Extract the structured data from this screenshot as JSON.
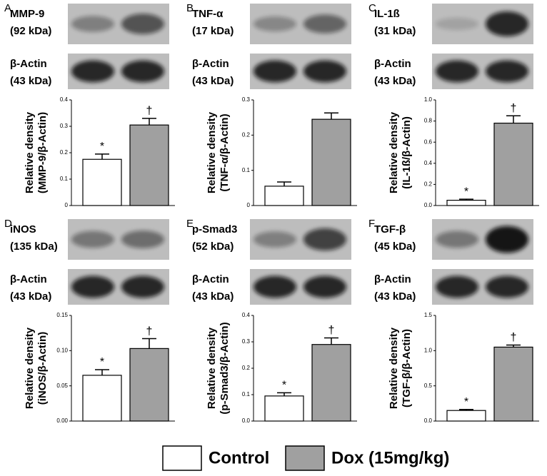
{
  "chart_data": [
    {
      "type": "bar",
      "panel": "A",
      "blot_label": "MMP-9",
      "blot_kda": "(92 kDa)",
      "actin_label": "β-Actin",
      "actin_kda": "(43 kDa)",
      "ylabel": [
        "Relative density",
        "(MMP-9/β-Actin)"
      ],
      "values": [
        0.175,
        0.305
      ],
      "errors": [
        0.02,
        0.025
      ],
      "annotations": [
        "*",
        "†"
      ],
      "ylim": [
        0,
        0.4
      ],
      "yticks": [
        0,
        0.1,
        0.2,
        0.3,
        0.4
      ]
    },
    {
      "type": "bar",
      "panel": "B",
      "blot_label": "TNF-α",
      "blot_kda": "(17 kDa)",
      "actin_label": "β-Actin",
      "actin_kda": "(43 kDa)",
      "ylabel": [
        "Relative density",
        "(TNF-α/β-Actin)"
      ],
      "values": [
        0.055,
        0.245
      ],
      "errors": [
        0.012,
        0.018
      ],
      "ylim": [
        0,
        0.3
      ],
      "yticks": [
        0,
        0.1,
        0.2,
        0.3
      ]
    },
    {
      "type": "bar",
      "panel": "C",
      "blot_label": "IL-1ß",
      "blot_kda": "(31 kDa)",
      "actin_label": "β-Actin",
      "actin_kda": "(43 kDa)",
      "ylabel": [
        "Relative density",
        "(IL-1ß/β-Actin)"
      ],
      "values": [
        0.05,
        0.78
      ],
      "errors": [
        0.01,
        0.07
      ],
      "annotations": [
        "*",
        "†"
      ],
      "ylim": [
        0,
        1.0
      ],
      "yticks": [
        {
          "value": 0,
          "label": "0.0"
        },
        0.2,
        0.4,
        0.6,
        0.8,
        {
          "value": 1,
          "label": "1.0"
        }
      ]
    },
    {
      "type": "bar",
      "panel": "D",
      "blot_label": "iNOS",
      "blot_kda": "(135 kDa)",
      "actin_label": "β-Actin",
      "actin_kda": "(43 kDa)",
      "ylabel": [
        "Relative density",
        "(iNOS/β-Actin)"
      ],
      "values": [
        0.065,
        0.103
      ],
      "errors": [
        0.008,
        0.014
      ],
      "annotations": [
        "*",
        "†"
      ],
      "ylim": [
        0,
        0.15
      ],
      "yticks": [
        {
          "value": 0,
          "label": "0.00"
        },
        0.05,
        {
          "value": 0.1,
          "label": "0.10"
        },
        0.15
      ]
    },
    {
      "type": "bar",
      "panel": "E",
      "blot_label": "p-Smad3",
      "blot_kda": "(52 kDa)",
      "actin_label": "β-Actin",
      "actin_kda": "(43 kDa)",
      "ylabel": [
        "Relative density",
        "(p-Smad3/β-Actin)"
      ],
      "values": [
        0.095,
        0.29
      ],
      "errors": [
        0.012,
        0.025
      ],
      "annotations": [
        "*",
        "†"
      ],
      "ylim": [
        0,
        0.4
      ],
      "yticks": [
        {
          "value": 0,
          "label": "0.0"
        },
        0.1,
        0.2,
        0.3,
        0.4
      ]
    },
    {
      "type": "bar",
      "panel": "F",
      "blot_label": "TGF-β",
      "blot_kda": "(45 kDa)",
      "actin_label": "β-Actin",
      "actin_kda": "(43 kDa)",
      "ylabel": [
        "Relative density",
        "(TGF-β/β-Actin)"
      ],
      "values": [
        0.15,
        1.05
      ],
      "errors": [
        0.015,
        0.03
      ],
      "annotations": [
        "*",
        "†"
      ],
      "ylim": [
        0,
        1.5
      ],
      "yticks": [
        {
          "value": 0,
          "label": "0.0"
        },
        0.5,
        {
          "value": 1,
          "label": "1.0"
        },
        1.5
      ]
    }
  ],
  "legend": [
    {
      "name": "Control",
      "color": "#ffffff"
    },
    {
      "name": "Dox (15mg/kg)",
      "color": "#a0a0a0"
    }
  ]
}
